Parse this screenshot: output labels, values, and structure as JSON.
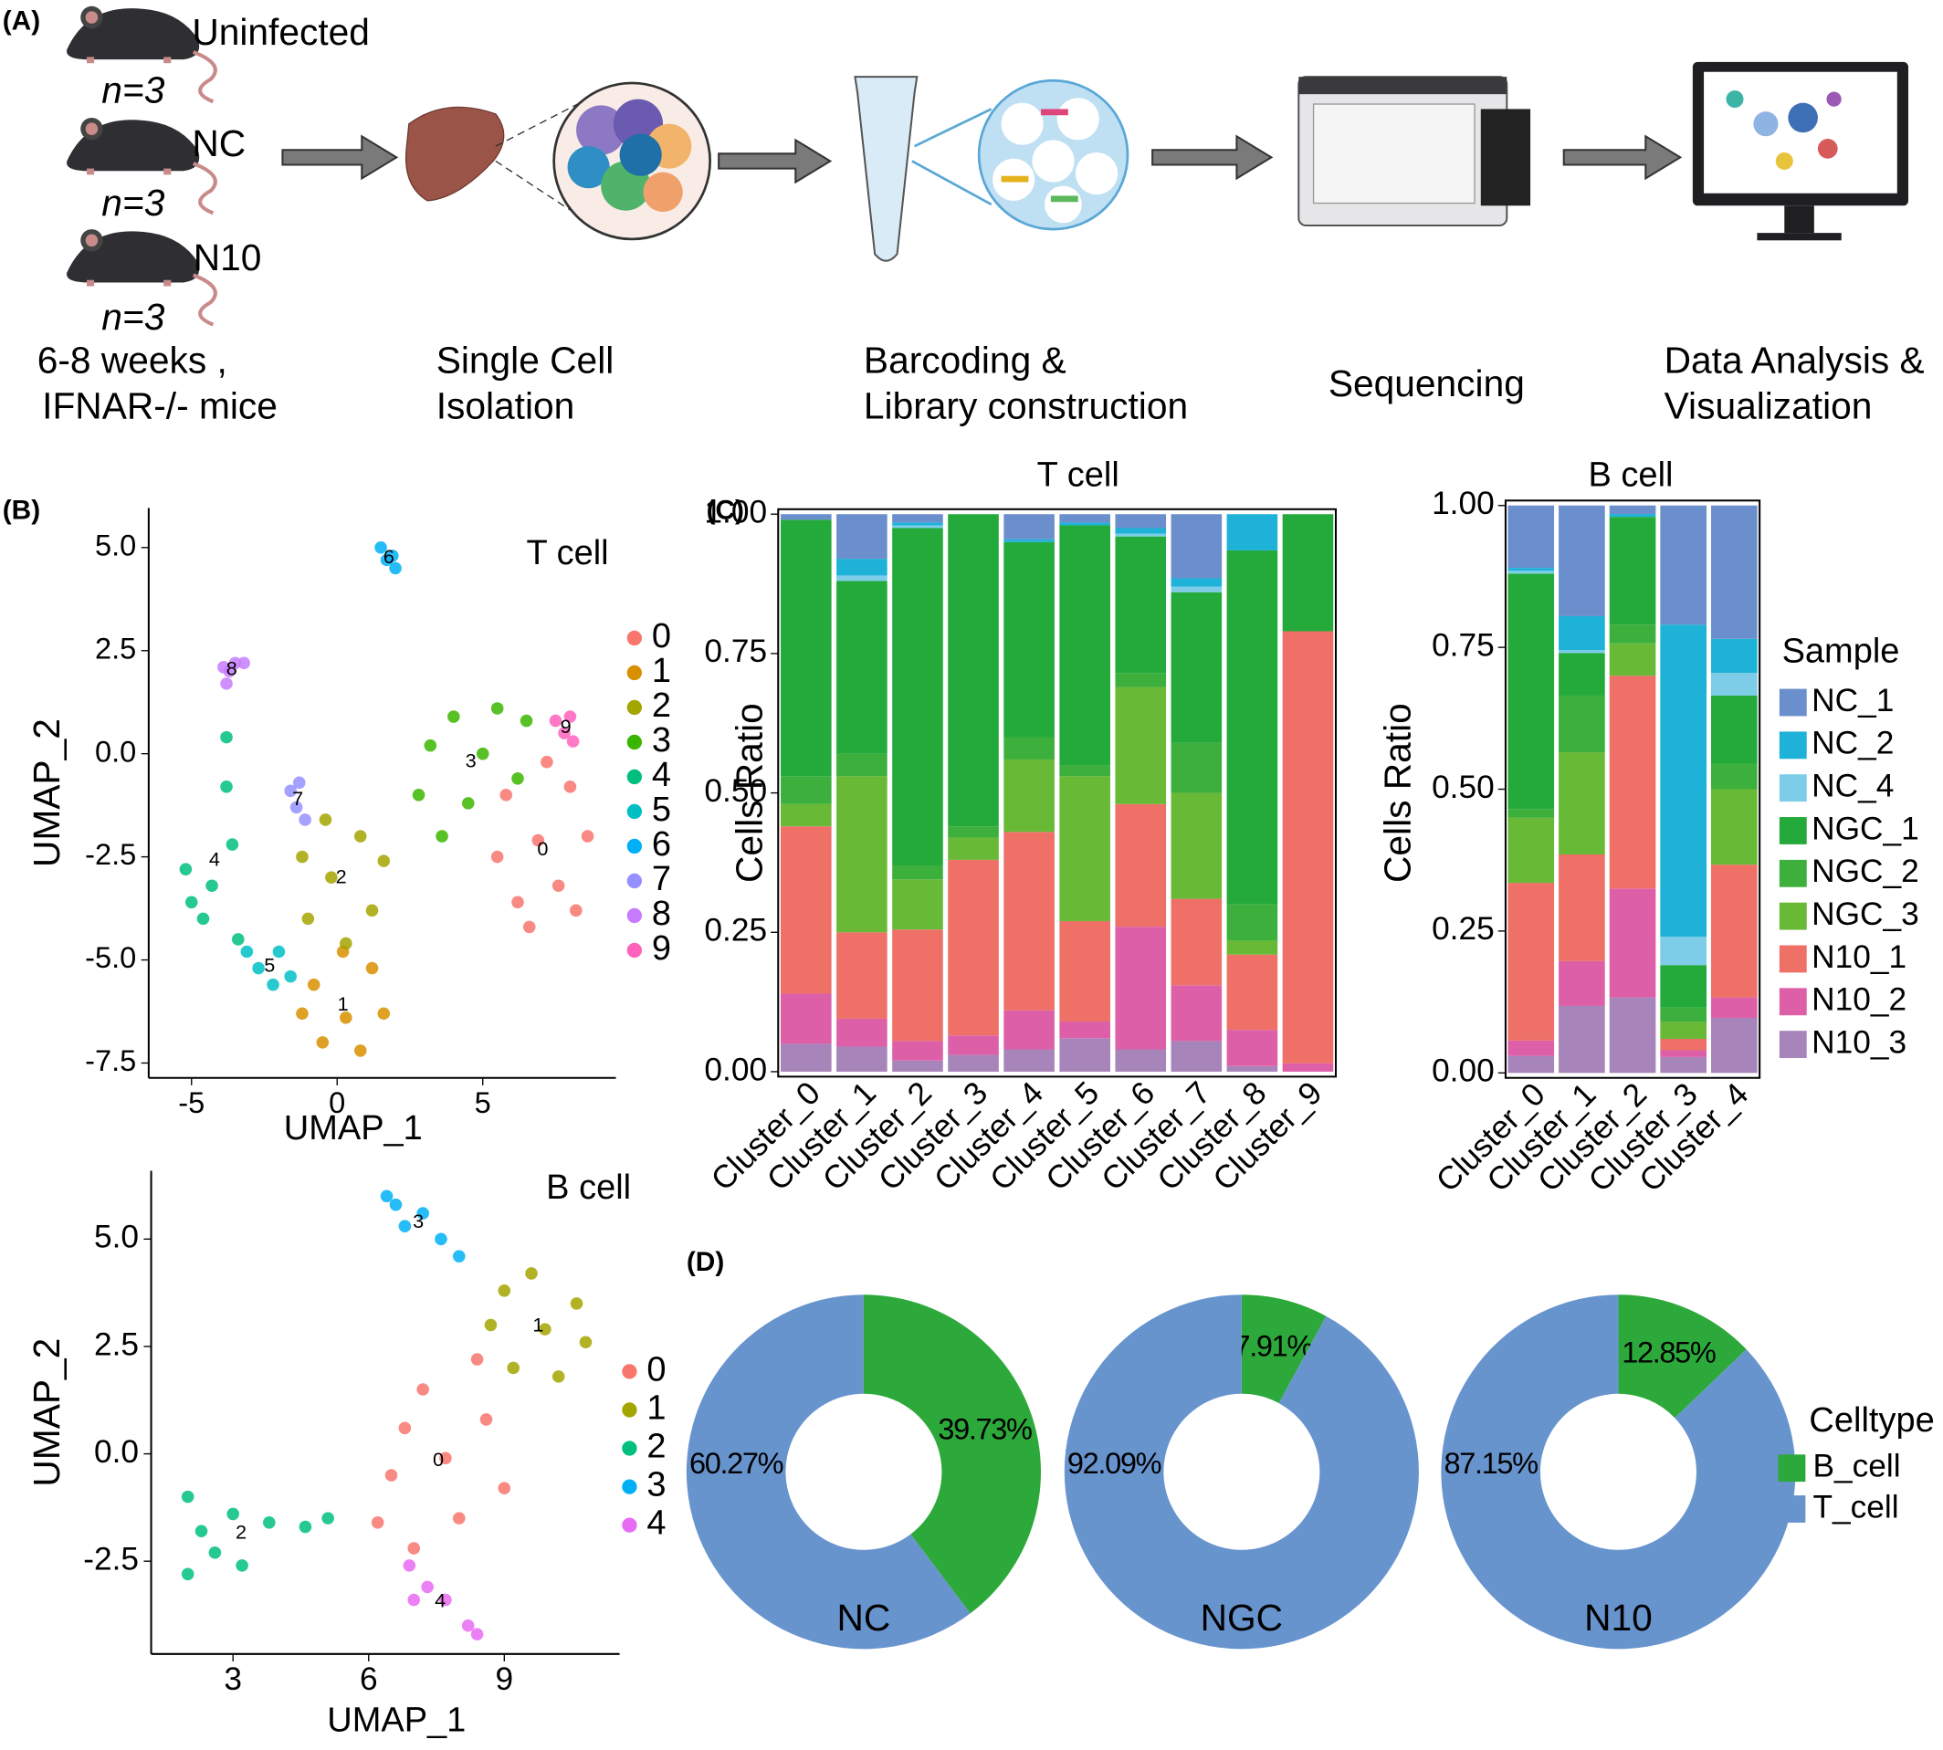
{
  "panel_labels": [
    "(A)",
    "(B)",
    "(C)",
    "(D)"
  ],
  "workflow": {
    "groups": [
      {
        "name": "Uninfected",
        "n": "n=3"
      },
      {
        "name": "NC",
        "n": "n=3"
      },
      {
        "name": "N10",
        "n": "n=3"
      }
    ],
    "steps": [
      [
        "6-8 weeks ,",
        "IFNAR-/- mice"
      ],
      [
        "Single Cell",
        "Isolation"
      ],
      [
        "Barcoding &",
        "Library construction"
      ],
      [
        "Sequencing"
      ],
      [
        "Data Analysis &",
        "Visualization"
      ]
    ]
  },
  "chart_data": [
    {
      "type": "scatter",
      "title": "T cell",
      "xlabel": "UMAP_1",
      "ylabel": "UMAP_2",
      "xlim": [
        -6.47,
        9.57
      ],
      "ylim": [
        -7.86,
        5.96
      ],
      "xticks": [
        -5,
        0,
        5
      ],
      "yticks": [
        {
          "value": 5,
          "label": "5.0"
        },
        {
          "value": 2.5,
          "label": "2.5"
        },
        {
          "value": 0,
          "label": "0.0"
        },
        {
          "value": -2.5,
          "label": "-2.5"
        },
        {
          "value": -5,
          "label": "-5.0"
        },
        {
          "value": -7.5,
          "label": "-7.5"
        }
      ],
      "series": [
        {
          "name": "0",
          "color": "#F8766D",
          "x": [
            6.9,
            5.8,
            8.0,
            7.6,
            6.2,
            8.6,
            5.5,
            7.2,
            6.6,
            8.2
          ],
          "y": [
            -2.1,
            -1.0,
            -0.8,
            -3.2,
            -3.6,
            -2.0,
            -2.5,
            -0.2,
            -4.2,
            -3.8
          ]
        },
        {
          "name": "1",
          "color": "#D89000",
          "x": [
            0.3,
            -0.8,
            1.2,
            0.8,
            -0.5,
            1.6,
            -1.2,
            0.2
          ],
          "y": [
            -6.4,
            -5.6,
            -5.2,
            -7.2,
            -7.0,
            -6.3,
            -6.3,
            -4.8
          ]
        },
        {
          "name": "2",
          "color": "#A3A500",
          "x": [
            -0.2,
            0.8,
            -1.2,
            1.2,
            -1.0,
            0.3,
            1.6,
            -0.4
          ],
          "y": [
            -3.0,
            -2.0,
            -2.5,
            -3.8,
            -4.0,
            -4.6,
            -2.6,
            -1.6
          ]
        },
        {
          "name": "3",
          "color": "#39B600",
          "x": [
            5.0,
            4.0,
            5.5,
            6.5,
            3.2,
            2.8,
            4.5,
            6.2,
            3.6
          ],
          "y": [
            0.0,
            0.9,
            1.1,
            0.8,
            0.2,
            -1.0,
            -1.2,
            -0.6,
            -2.0
          ]
        },
        {
          "name": "4",
          "color": "#00BF7D",
          "x": [
            -4.3,
            -5.2,
            -3.6,
            -3.8,
            -4.6,
            -3.4,
            -3.8,
            -5.0
          ],
          "y": [
            -3.2,
            -2.8,
            -2.2,
            -0.8,
            -4.0,
            -4.5,
            0.4,
            -3.6
          ]
        },
        {
          "name": "5",
          "color": "#00BFC4",
          "x": [
            -2.7,
            -2.2,
            -3.1,
            -2.0,
            -1.6
          ],
          "y": [
            -5.2,
            -5.6,
            -4.8,
            -4.8,
            -5.4
          ]
        },
        {
          "name": "6",
          "color": "#00B0F6",
          "x": [
            1.7,
            1.5,
            2.0,
            1.9
          ],
          "y": [
            4.7,
            5.0,
            4.5,
            4.8
          ]
        },
        {
          "name": "7",
          "color": "#9590FF",
          "x": [
            -1.4,
            -1.6,
            -1.1,
            -1.3
          ],
          "y": [
            -1.3,
            -0.9,
            -1.6,
            -0.7
          ]
        },
        {
          "name": "8",
          "color": "#C77CFF",
          "x": [
            -3.7,
            -3.5,
            -3.9,
            -3.2,
            -3.8
          ],
          "y": [
            2.0,
            2.2,
            2.1,
            2.2,
            1.7
          ]
        },
        {
          "name": "9",
          "color": "#FF62BC",
          "x": [
            7.8,
            7.5,
            8.1,
            8.0
          ],
          "y": [
            0.5,
            0.8,
            0.3,
            0.9
          ]
        }
      ]
    },
    {
      "type": "scatter",
      "title": "B cell",
      "xlabel": "UMAP_1",
      "ylabel": "UMAP_2",
      "xlim": [
        1.19,
        11.55
      ],
      "ylim": [
        -4.66,
        6.59
      ],
      "xticks": [
        3,
        6,
        9
      ],
      "yticks": [
        {
          "value": 5,
          "label": "5.0"
        },
        {
          "value": 2.5,
          "label": "2.5"
        },
        {
          "value": 0,
          "label": "0.0"
        },
        {
          "value": -2.5,
          "label": "-2.5"
        }
      ],
      "series": [
        {
          "name": "0",
          "color": "#F8766D",
          "x": [
            7.7,
            6.5,
            8.6,
            7.2,
            8.0,
            6.2,
            9.0,
            7.0,
            8.4,
            6.8
          ],
          "y": [
            -0.1,
            -0.5,
            0.8,
            1.5,
            -1.5,
            -1.6,
            -0.8,
            -2.2,
            2.2,
            0.6
          ]
        },
        {
          "name": "1",
          "color": "#A3A500",
          "x": [
            9.9,
            9.0,
            10.6,
            10.2,
            9.2,
            10.8,
            8.7,
            9.6
          ],
          "y": [
            2.9,
            3.8,
            3.5,
            1.8,
            2.0,
            2.6,
            3.0,
            4.2
          ]
        },
        {
          "name": "2",
          "color": "#00BF7D",
          "x": [
            2.6,
            2.0,
            2.0,
            3.0,
            3.2,
            2.3,
            3.8,
            4.6,
            5.1
          ],
          "y": [
            -2.3,
            -1.0,
            -2.8,
            -1.4,
            -2.6,
            -1.8,
            -1.6,
            -1.7,
            -1.5
          ]
        },
        {
          "name": "3",
          "color": "#00B0F6",
          "x": [
            6.8,
            6.4,
            7.2,
            7.6,
            8.0,
            6.6
          ],
          "y": [
            5.3,
            6.0,
            5.6,
            5.0,
            4.6,
            5.8
          ]
        },
        {
          "name": "4",
          "color": "#E76BF3",
          "x": [
            7.3,
            6.9,
            7.7,
            8.2,
            8.4,
            7.0
          ],
          "y": [
            -3.1,
            -2.6,
            -3.4,
            -4.0,
            -4.2,
            -3.4
          ]
        }
      ]
    },
    {
      "type": "bar",
      "stacked": true,
      "title": "T cell",
      "ylabel": "Cells Ratio",
      "categories": [
        "Cluster_0",
        "Cluster_1",
        "Cluster_2",
        "Cluster_3",
        "Cluster_4",
        "Cluster_5",
        "Cluster_6",
        "Cluster_7",
        "Cluster_8",
        "Cluster_9"
      ],
      "ylim": [
        0,
        1
      ],
      "yticks": [
        {
          "value": 0,
          "label": "0.00"
        },
        {
          "value": 0.25,
          "label": "0.25"
        },
        {
          "value": 0.5,
          "label": "0.50"
        },
        {
          "value": 0.75,
          "label": "0.75"
        },
        {
          "value": 1,
          "label": "1.00"
        }
      ],
      "series": [
        {
          "name": "N10_3",
          "color": "#A784BA",
          "values": [
            0.05,
            0.045,
            0.02,
            0.03,
            0.04,
            0.06,
            0.04,
            0.055,
            0.01,
            0
          ]
        },
        {
          "name": "N10_2",
          "color": "#DD5FA8",
          "values": [
            0.09,
            0.05,
            0.035,
            0.035,
            0.07,
            0.03,
            0.22,
            0.1,
            0.065,
            0.015
          ]
        },
        {
          "name": "N10_1",
          "color": "#EE7067",
          "values": [
            0.3,
            0.155,
            0.2,
            0.315,
            0.32,
            0.18,
            0.22,
            0.155,
            0.135,
            0.775
          ]
        },
        {
          "name": "NGC_3",
          "color": "#68B935",
          "values": [
            0.04,
            0.28,
            0.09,
            0.04,
            0.13,
            0.26,
            0.21,
            0.19,
            0.025,
            0
          ]
        },
        {
          "name": "NGC_2",
          "color": "#3DAF3C",
          "values": [
            0.05,
            0.04,
            0.025,
            0.02,
            0.04,
            0.02,
            0.025,
            0.09,
            0.065,
            0
          ]
        },
        {
          "name": "NGC_1",
          "color": "#23AA3A",
          "values": [
            0.46,
            0.31,
            0.605,
            0.56,
            0.35,
            0.43,
            0.245,
            0.27,
            0.635,
            0.21
          ]
        },
        {
          "name": "NC_4",
          "color": "#7DCCE8",
          "values": [
            0,
            0.01,
            0.005,
            0,
            0,
            0,
            0.005,
            0.01,
            0,
            0
          ]
        },
        {
          "name": "NC_2",
          "color": "#1EB2D8",
          "values": [
            0,
            0.03,
            0.005,
            0,
            0.005,
            0.005,
            0.01,
            0.015,
            0.065,
            0
          ]
        },
        {
          "name": "NC_1",
          "color": "#6B8FCC",
          "values": [
            0.01,
            0.08,
            0.015,
            0,
            0.045,
            0.015,
            0.025,
            0.115,
            0,
            0
          ]
        }
      ]
    },
    {
      "type": "bar",
      "stacked": true,
      "title": "B cell",
      "ylabel": "Cells Ratio",
      "legend_title": "Sample",
      "categories": [
        "Cluster_0",
        "Cluster_1",
        "Cluster_2",
        "Cluster_3",
        "Cluster_4"
      ],
      "ylim": [
        0,
        1
      ],
      "yticks": [
        {
          "value": 0,
          "label": "0.00"
        },
        {
          "value": 0.25,
          "label": "0.25"
        },
        {
          "value": 0.5,
          "label": "0.50"
        },
        {
          "value": 0.75,
          "label": "0.75"
        },
        {
          "value": 1,
          "label": "1.00"
        }
      ],
      "series": [
        {
          "name": "N10_3",
          "color": "#A784BA",
          "values": [
            0.03,
            0.118,
            0.133,
            0.028,
            0.097
          ]
        },
        {
          "name": "N10_2",
          "color": "#DD5FA8",
          "values": [
            0.027,
            0.079,
            0.192,
            0.012,
            0.036
          ]
        },
        {
          "name": "N10_1",
          "color": "#EE7067",
          "values": [
            0.278,
            0.188,
            0.375,
            0.02,
            0.234
          ]
        },
        {
          "name": "NGC_3",
          "color": "#68B935",
          "values": [
            0.115,
            0.18,
            0.057,
            0.03,
            0.133
          ]
        },
        {
          "name": "NGC_2",
          "color": "#3DAF3C",
          "values": [
            0.015,
            0.1,
            0.033,
            0.025,
            0.045
          ]
        },
        {
          "name": "NGC_1",
          "color": "#23AA3A",
          "values": [
            0.415,
            0.075,
            0.19,
            0.075,
            0.12
          ]
        },
        {
          "name": "NC_4",
          "color": "#7DCCE8",
          "values": [
            0.005,
            0.005,
            0,
            0.05,
            0.04
          ]
        },
        {
          "name": "NC_2",
          "color": "#1EB2D8",
          "values": [
            0.005,
            0.06,
            0.005,
            0.55,
            0.06
          ]
        },
        {
          "name": "NC_1",
          "color": "#6B8FCC",
          "values": [
            0.11,
            0.195,
            0.015,
            0.21,
            0.235
          ]
        }
      ]
    },
    {
      "type": "pie",
      "title": "NC",
      "categories": [
        "B_cell",
        "T_cell"
      ],
      "values": [
        39.73,
        60.27
      ],
      "value_labels": [
        "39.73%",
        "60.27%"
      ],
      "colors": [
        "#2CA93A",
        "#6894CE"
      ]
    },
    {
      "type": "pie",
      "title": "NGC",
      "categories": [
        "B_cell",
        "T_cell"
      ],
      "values": [
        7.91,
        92.09
      ],
      "value_labels": [
        "7.91%",
        "92.09%"
      ],
      "colors": [
        "#2CA93A",
        "#6894CE"
      ]
    },
    {
      "type": "pie",
      "title": "N10",
      "categories": [
        "B_cell",
        "T_cell"
      ],
      "values": [
        12.85,
        87.15
      ],
      "value_labels": [
        "12.85%",
        "87.15%"
      ],
      "colors": [
        "#2CA93A",
        "#6894CE"
      ],
      "legend_title": "Celltype"
    }
  ]
}
